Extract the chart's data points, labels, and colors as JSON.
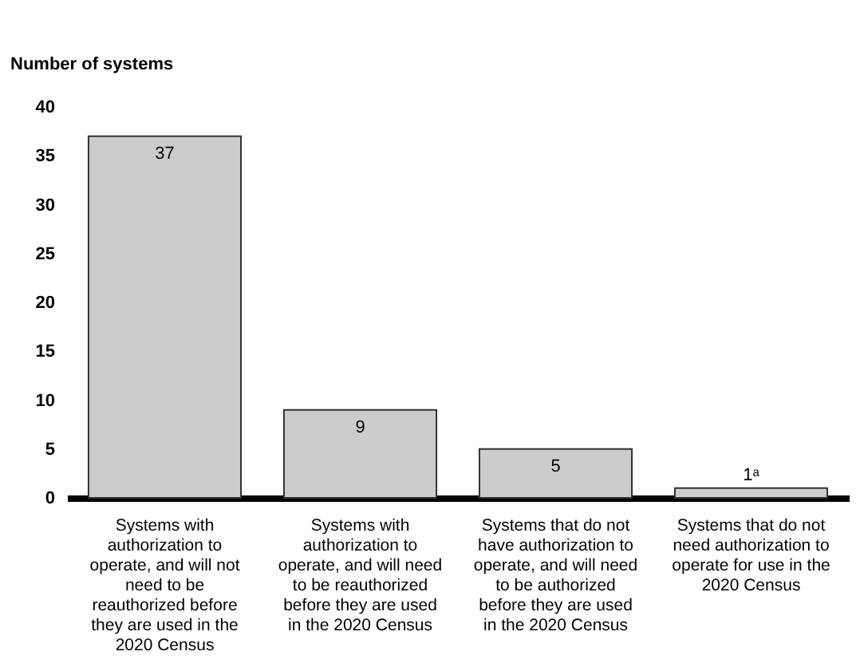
{
  "chart_data": {
    "type": "bar",
    "ylabel": "Number of systems",
    "categories": [
      "Systems with authorization to operate, and will not need to be reauthorized before they are used in the 2020 Census",
      "Systems with authorization to operate, and will need to be reauthorized before they are used in the 2020 Census",
      "Systems that do not have authorization to operate, and will need to be authorized before they are used in the 2020 Census",
      "Systems that do not need authorization to operate for use in the 2020 Census"
    ],
    "values": [
      37,
      9,
      5,
      1
    ],
    "value_labels": [
      "37",
      "9",
      "5",
      "1ᵃ"
    ],
    "color": "#cccccc",
    "ylim": [
      0,
      40
    ],
    "yticks": [
      0,
      5,
      10,
      15,
      20,
      25,
      30,
      35,
      40
    ],
    "grid": false
  }
}
